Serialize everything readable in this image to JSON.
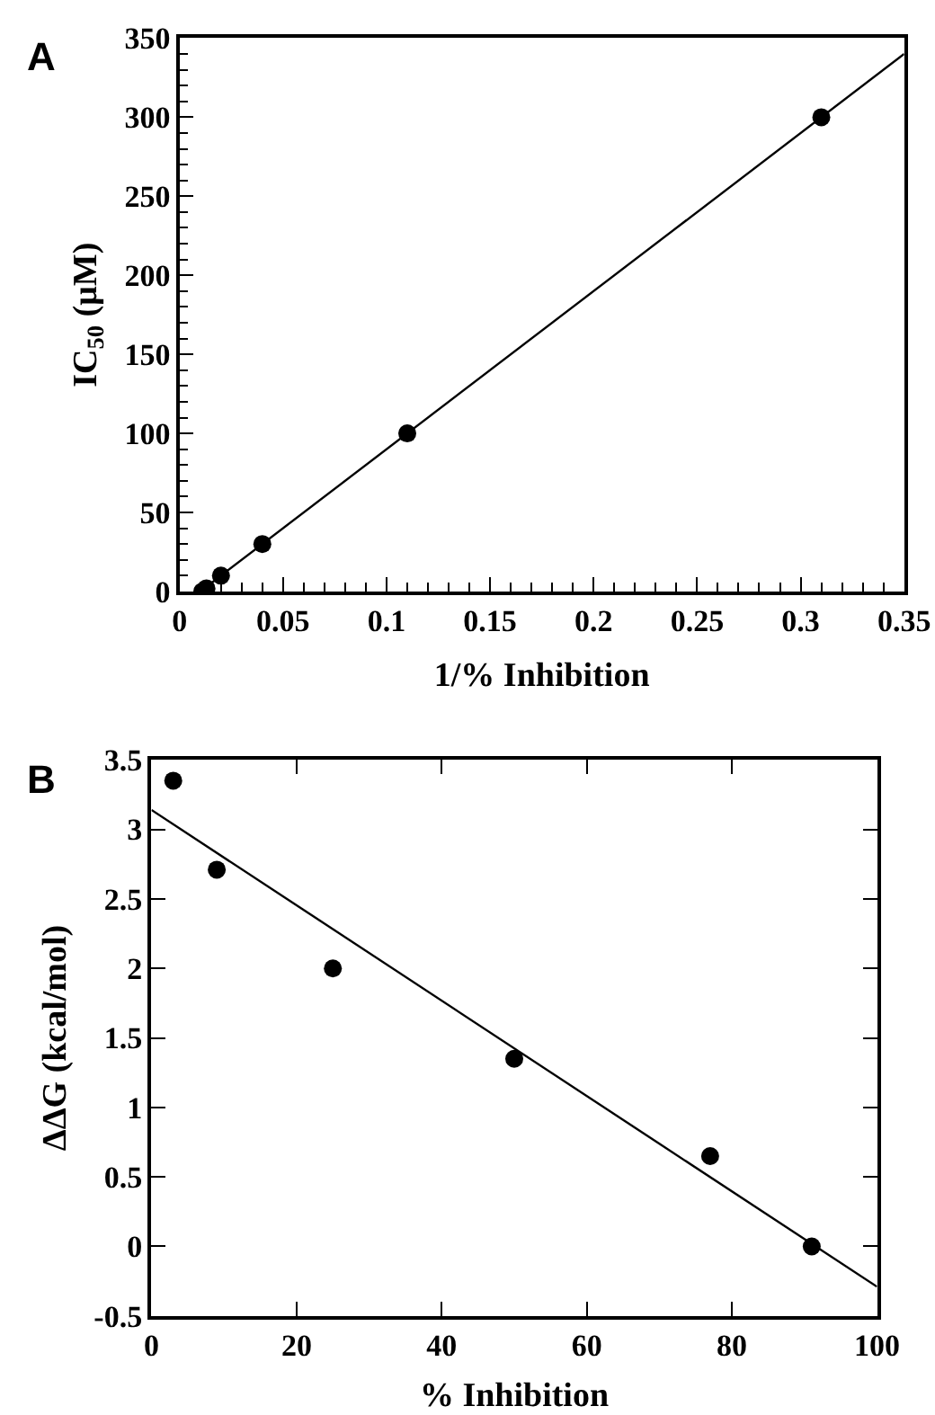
{
  "chart_data": [
    {
      "type": "scatter",
      "title": "A",
      "xlabel": "1/% Inhibition",
      "ylabel": "IC$_{50}$ (μM)",
      "xlim": [
        0,
        0.35
      ],
      "ylim": [
        0,
        350
      ],
      "xticks": [
        0,
        0.05,
        0.1,
        0.15,
        0.2,
        0.25,
        0.3,
        0.35
      ],
      "yticks": [
        0,
        50,
        100,
        150,
        200,
        250,
        300,
        350
      ],
      "marker": "circle",
      "series": [
        {
          "color": "#000000",
          "x": [
            0.011,
            0.013,
            0.02,
            0.04,
            0.11,
            0.31
          ],
          "values": [
            0,
            2,
            10,
            30,
            100,
            300
          ]
        },
        {
          "type": "line",
          "color": "#000000",
          "marker": "none",
          "line_style": "solid",
          "x": [
            0.01,
            0.35
          ],
          "values": [
            0,
            340
          ]
        }
      ]
    },
    {
      "type": "scatter",
      "title": "B",
      "xlabel": "% Inhibition",
      "ylabel": "ΔΔG (kcal/mol)",
      "xlim": [
        0,
        100
      ],
      "ylim": [
        -0.5,
        3.5
      ],
      "xticks": [
        0,
        20,
        40,
        60,
        80,
        100
      ],
      "yticks": [
        -0.5,
        0,
        0.5,
        1,
        1.5,
        2,
        2.5,
        3,
        3.5
      ],
      "marker": "circle",
      "series": [
        {
          "color": "#000000",
          "x": [
            3,
            9,
            25,
            50,
            77,
            91
          ],
          "values": [
            3.35,
            2.71,
            2.0,
            1.35,
            0.65,
            0
          ]
        },
        {
          "type": "line",
          "color": "#000000",
          "marker": "none",
          "line_style": "solid",
          "x": [
            0,
            100
          ],
          "values": [
            3.14,
            -0.29
          ]
        }
      ]
    }
  ]
}
